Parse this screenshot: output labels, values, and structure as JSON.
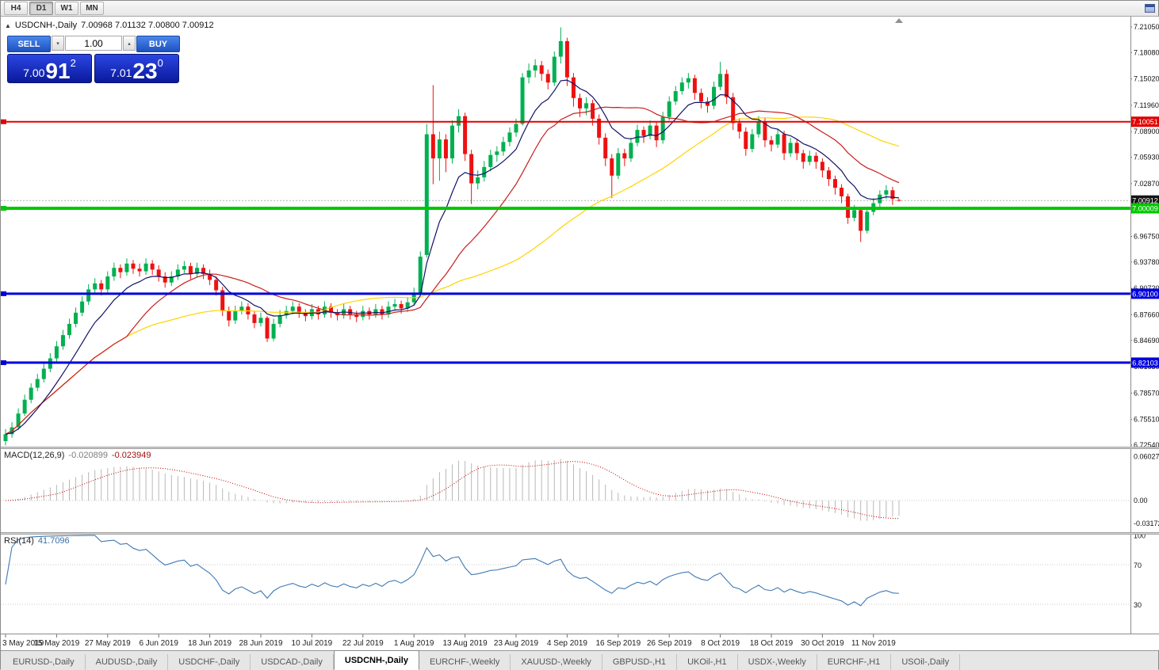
{
  "toolbar": {
    "timeframes": [
      "H4",
      "D1",
      "W1",
      "MN"
    ],
    "active_timeframe": "D1"
  },
  "chart": {
    "symbol_period": "USDCNH-,Daily",
    "ohlc_line": "7.00968 7.01132 7.00800 7.00912"
  },
  "trade_panel": {
    "sell_label": "SELL",
    "buy_label": "BUY",
    "volume": "1.00",
    "sell_price": {
      "main": "7.00",
      "big": "91",
      "sup": "2"
    },
    "buy_price": {
      "main": "7.01",
      "big": "23",
      "sup": "0"
    }
  },
  "tabs": [
    "EURUSD-,Daily",
    "AUDUSD-,Daily",
    "USDCHF-,Daily",
    "USDCAD-,Daily",
    "USDCNH-,Daily",
    "EURCHF-,Weekly",
    "XAUUSD-,Weekly",
    "GBPUSD-,H1",
    "UKOil-,H1",
    "USDX-,Weekly",
    "EURCHF-,H1",
    "USOil-,Daily"
  ],
  "active_tab_index": 4,
  "chart_data": {
    "type": "candlestick",
    "symbol": "USDCNH-",
    "period": "Daily",
    "last_ohlc": {
      "open": 7.00968,
      "high": 7.01132,
      "low": 7.008,
      "close": 7.00912
    },
    "price_axis": {
      "top": 7.2105,
      "bottom": 6.7254,
      "ticks": [
        "7.21050",
        "7.18080",
        "7.15020",
        "7.11960",
        "7.08900",
        "7.05930",
        "7.02870",
        "6.99810",
        "6.96750",
        "6.93780",
        "6.90720",
        "6.87660",
        "6.84690",
        "6.81630",
        "6.78570",
        "6.75510",
        "6.72540"
      ]
    },
    "colors": {
      "up": "#00b050",
      "down": "#ee1111",
      "ma_fast": "#121268",
      "ma_mid": "#c81e1e",
      "ma_slow": "#ffd400",
      "macd_hist": "#b8b8b8",
      "macd_signal": "#c00000",
      "rsi_line": "#3f79b4"
    },
    "moving_averages": [
      {
        "method": "ema",
        "period": 9,
        "color_key": "ma_fast"
      },
      {
        "method": "sma",
        "period": 20,
        "color_key": "ma_mid"
      },
      {
        "method": "sma",
        "period": 50,
        "color_key": "ma_slow"
      }
    ],
    "hlines": [
      {
        "price": 7.10051,
        "label": "7.10051",
        "color": "#e00000",
        "width": 2
      },
      {
        "price": 7.00009,
        "label": "7.00009",
        "color": "#00c800",
        "width": 4
      },
      {
        "price": 6.901,
        "label": "6.90100",
        "color": "#0000dc",
        "width": 3
      },
      {
        "price": 6.82103,
        "label": "6.82103",
        "color": "#0000dc",
        "width": 3
      }
    ],
    "current_price": {
      "value": 7.00912,
      "label": "7.00912",
      "badge_color": "#141414"
    },
    "macd": {
      "name": "MACD(12,26,9)",
      "value_main": "-0.020899",
      "value_signal": "-0.023949",
      "fast": 12,
      "slow": 26,
      "signal": 9,
      "axis_ticks": [
        0.060273,
        0,
        -0.031725
      ],
      "axis_labels": [
        "0.060273",
        "0.00",
        "-0.031725"
      ]
    },
    "rsi": {
      "name": "RSI(14)",
      "value": "41.7096",
      "period": 14,
      "axis_labels": [
        "100",
        "70",
        "30"
      ],
      "axis_values": [
        100,
        70,
        30
      ],
      "levels": [
        70,
        30
      ]
    },
    "date_ticks": [
      [
        0,
        "3 May 2019"
      ],
      [
        8,
        "15 May 2019"
      ],
      [
        16,
        "27 May 2019"
      ],
      [
        24,
        "6 Jun 2019"
      ],
      [
        32,
        "18 Jun 2019"
      ],
      [
        40,
        "28 Jun 2019"
      ],
      [
        48,
        "10 Jul 2019"
      ],
      [
        56,
        "22 Jul 2019"
      ],
      [
        64,
        "1 Aug 2019"
      ],
      [
        72,
        "13 Aug 2019"
      ],
      [
        80,
        "23 Aug 2019"
      ],
      [
        88,
        "4 Sep 2019"
      ],
      [
        96,
        "16 Sep 2019"
      ],
      [
        104,
        "26 Sep 2019"
      ],
      [
        112,
        "8 Oct 2019"
      ],
      [
        120,
        "18 Oct 2019"
      ],
      [
        128,
        "30 Oct 2019"
      ],
      [
        136,
        "11 Nov 2019"
      ]
    ],
    "candles": [
      [
        6.73,
        6.744,
        6.725,
        6.738
      ],
      [
        6.738,
        6.752,
        6.734,
        6.746
      ],
      [
        6.746,
        6.768,
        6.743,
        6.762
      ],
      [
        6.762,
        6.784,
        6.759,
        6.778
      ],
      [
        6.778,
        6.797,
        6.774,
        6.792
      ],
      [
        6.792,
        6.808,
        6.788,
        6.802
      ],
      [
        6.802,
        6.82,
        6.798,
        6.814
      ],
      [
        6.814,
        6.832,
        6.81,
        6.826
      ],
      [
        6.826,
        6.846,
        6.822,
        6.84
      ],
      [
        6.84,
        6.859,
        6.836,
        6.853
      ],
      [
        6.853,
        6.872,
        6.849,
        6.866
      ],
      [
        6.866,
        6.885,
        6.862,
        6.879
      ],
      [
        6.879,
        6.898,
        6.875,
        6.892
      ],
      [
        6.892,
        6.912,
        6.888,
        6.906
      ],
      [
        6.906,
        6.919,
        6.901,
        6.913
      ],
      [
        6.913,
        6.917,
        6.899,
        6.906
      ],
      [
        6.906,
        6.927,
        6.902,
        6.921
      ],
      [
        6.921,
        6.937,
        6.916,
        6.931
      ],
      [
        6.931,
        6.935,
        6.919,
        6.926
      ],
      [
        6.926,
        6.942,
        6.922,
        6.936
      ],
      [
        6.936,
        6.94,
        6.924,
        6.93
      ],
      [
        6.93,
        6.936,
        6.921,
        6.927
      ],
      [
        6.927,
        6.942,
        6.923,
        6.936
      ],
      [
        6.936,
        6.94,
        6.923,
        6.929
      ],
      [
        6.929,
        6.934,
        6.915,
        6.921
      ],
      [
        6.921,
        6.926,
        6.908,
        6.914
      ],
      [
        6.914,
        6.927,
        6.91,
        6.921
      ],
      [
        6.921,
        6.935,
        6.917,
        6.929
      ],
      [
        6.929,
        6.939,
        6.925,
        6.933
      ],
      [
        6.933,
        6.937,
        6.918,
        6.924
      ],
      [
        6.924,
        6.937,
        6.92,
        6.931
      ],
      [
        6.931,
        6.935,
        6.918,
        6.924
      ],
      [
        6.924,
        6.929,
        6.911,
        6.917
      ],
      [
        6.917,
        6.921,
        6.899,
        6.905
      ],
      [
        6.905,
        6.909,
        6.875,
        6.881
      ],
      [
        6.881,
        6.886,
        6.863,
        6.87
      ],
      [
        6.87,
        6.887,
        6.866,
        6.881
      ],
      [
        6.881,
        6.892,
        6.877,
        6.886
      ],
      [
        6.886,
        6.89,
        6.871,
        6.877
      ],
      [
        6.877,
        6.881,
        6.861,
        6.867
      ],
      [
        6.867,
        6.879,
        6.863,
        6.873
      ],
      [
        6.873,
        6.875,
        6.845,
        6.849
      ],
      [
        6.849,
        6.872,
        6.846,
        6.866
      ],
      [
        6.866,
        6.882,
        6.862,
        6.876
      ],
      [
        6.876,
        6.887,
        6.872,
        6.881
      ],
      [
        6.881,
        6.892,
        6.877,
        6.886
      ],
      [
        6.886,
        6.89,
        6.873,
        6.879
      ],
      [
        6.879,
        6.883,
        6.869,
        6.875
      ],
      [
        6.875,
        6.889,
        6.871,
        6.883
      ],
      [
        6.883,
        6.887,
        6.871,
        6.877
      ],
      [
        6.877,
        6.892,
        6.873,
        6.886
      ],
      [
        6.886,
        6.89,
        6.873,
        6.879
      ],
      [
        6.879,
        6.883,
        6.87,
        6.876
      ],
      [
        6.876,
        6.889,
        6.872,
        6.883
      ],
      [
        6.883,
        6.887,
        6.871,
        6.877
      ],
      [
        6.877,
        6.881,
        6.868,
        6.874
      ],
      [
        6.874,
        6.887,
        6.87,
        6.881
      ],
      [
        6.881,
        6.885,
        6.871,
        6.877
      ],
      [
        6.877,
        6.889,
        6.873,
        6.883
      ],
      [
        6.883,
        6.887,
        6.871,
        6.877
      ],
      [
        6.877,
        6.892,
        6.873,
        6.886
      ],
      [
        6.886,
        6.895,
        6.882,
        6.889
      ],
      [
        6.889,
        6.893,
        6.878,
        6.884
      ],
      [
        6.884,
        6.897,
        6.88,
        6.891
      ],
      [
        6.891,
        6.908,
        6.887,
        6.902
      ],
      [
        6.902,
        6.95,
        6.899,
        6.944
      ],
      [
        6.946,
        7.098,
        6.943,
        7.086
      ],
      [
        7.086,
        7.143,
        7.028,
        7.058
      ],
      [
        7.058,
        7.089,
        7.032,
        7.08
      ],
      [
        7.08,
        7.086,
        7.042,
        7.058
      ],
      [
        7.058,
        7.102,
        7.052,
        7.096
      ],
      [
        7.096,
        7.115,
        7.088,
        7.107
      ],
      [
        7.107,
        7.111,
        7.055,
        7.063
      ],
      [
        7.063,
        7.068,
        7.005,
        7.029
      ],
      [
        7.029,
        7.044,
        7.022,
        7.036
      ],
      [
        7.036,
        7.055,
        7.031,
        7.048
      ],
      [
        7.048,
        7.068,
        7.043,
        7.062
      ],
      [
        7.062,
        7.072,
        7.054,
        7.066
      ],
      [
        7.066,
        7.083,
        7.061,
        7.077
      ],
      [
        7.077,
        7.094,
        7.072,
        7.088
      ],
      [
        7.088,
        7.104,
        7.083,
        7.098
      ],
      [
        7.098,
        7.157,
        7.096,
        7.152
      ],
      [
        7.152,
        7.168,
        7.145,
        7.16
      ],
      [
        7.16,
        7.173,
        7.152,
        7.166
      ],
      [
        7.166,
        7.171,
        7.148,
        7.156
      ],
      [
        7.156,
        7.161,
        7.138,
        7.146
      ],
      [
        7.146,
        7.182,
        7.142,
        7.176
      ],
      [
        7.176,
        7.21,
        7.168,
        7.194
      ],
      [
        7.194,
        7.198,
        7.142,
        7.152
      ],
      [
        7.152,
        7.157,
        7.118,
        7.128
      ],
      [
        7.128,
        7.133,
        7.106,
        7.116
      ],
      [
        7.116,
        7.129,
        7.108,
        7.122
      ],
      [
        7.122,
        7.126,
        7.096,
        7.104
      ],
      [
        7.104,
        7.109,
        7.074,
        7.082
      ],
      [
        7.082,
        7.087,
        7.049,
        7.058
      ],
      [
        7.058,
        7.063,
        7.012,
        7.038
      ],
      [
        7.038,
        7.07,
        7.034,
        7.064
      ],
      [
        7.064,
        7.069,
        7.049,
        7.058
      ],
      [
        7.058,
        7.082,
        7.054,
        7.076
      ],
      [
        7.076,
        7.097,
        7.072,
        7.091
      ],
      [
        7.091,
        7.095,
        7.076,
        7.084
      ],
      [
        7.084,
        7.102,
        7.08,
        7.096
      ],
      [
        7.096,
        7.1,
        7.071,
        7.079
      ],
      [
        7.079,
        7.112,
        7.075,
        7.106
      ],
      [
        7.106,
        7.13,
        7.102,
        7.124
      ],
      [
        7.124,
        7.142,
        7.12,
        7.136
      ],
      [
        7.136,
        7.152,
        7.132,
        7.146
      ],
      [
        7.146,
        7.157,
        7.139,
        7.151
      ],
      [
        7.151,
        7.155,
        7.126,
        7.134
      ],
      [
        7.134,
        7.139,
        7.116,
        7.124
      ],
      [
        7.124,
        7.129,
        7.111,
        7.119
      ],
      [
        7.119,
        7.147,
        7.115,
        7.141
      ],
      [
        7.141,
        7.17,
        7.137,
        7.156
      ],
      [
        7.156,
        7.161,
        7.121,
        7.129
      ],
      [
        7.129,
        7.134,
        7.091,
        7.099
      ],
      [
        7.099,
        7.104,
        7.081,
        7.089
      ],
      [
        7.089,
        7.094,
        7.061,
        7.069
      ],
      [
        7.069,
        7.092,
        7.065,
        7.086
      ],
      [
        7.086,
        7.107,
        7.082,
        7.101
      ],
      [
        7.101,
        7.105,
        7.071,
        7.079
      ],
      [
        7.079,
        7.084,
        7.066,
        7.074
      ],
      [
        7.074,
        7.092,
        7.07,
        7.086
      ],
      [
        7.086,
        7.09,
        7.056,
        7.064
      ],
      [
        7.064,
        7.082,
        7.06,
        7.076
      ],
      [
        7.076,
        7.08,
        7.056,
        7.064
      ],
      [
        7.064,
        7.068,
        7.046,
        7.054
      ],
      [
        7.054,
        7.067,
        7.05,
        7.061
      ],
      [
        7.061,
        7.065,
        7.046,
        7.054
      ],
      [
        7.054,
        7.058,
        7.036,
        7.044
      ],
      [
        7.044,
        7.048,
        7.026,
        7.034
      ],
      [
        7.034,
        7.038,
        7.016,
        7.024
      ],
      [
        7.024,
        7.028,
        7.006,
        7.014
      ],
      [
        7.014,
        7.017,
        6.982,
        6.989
      ],
      [
        6.989,
        7.004,
        6.985,
        6.998
      ],
      [
        6.998,
        7.001,
        6.961,
        6.974
      ],
      [
        6.974,
        7.001,
        6.971,
        6.996
      ],
      [
        6.996,
        7.012,
        6.992,
        7.006
      ],
      [
        7.006,
        7.021,
        7.002,
        7.016
      ],
      [
        7.016,
        7.027,
        7.011,
        7.021
      ],
      [
        7.021,
        7.025,
        7.004,
        7.011
      ],
      [
        7.0097,
        7.0113,
        7.008,
        7.0091
      ]
    ]
  }
}
